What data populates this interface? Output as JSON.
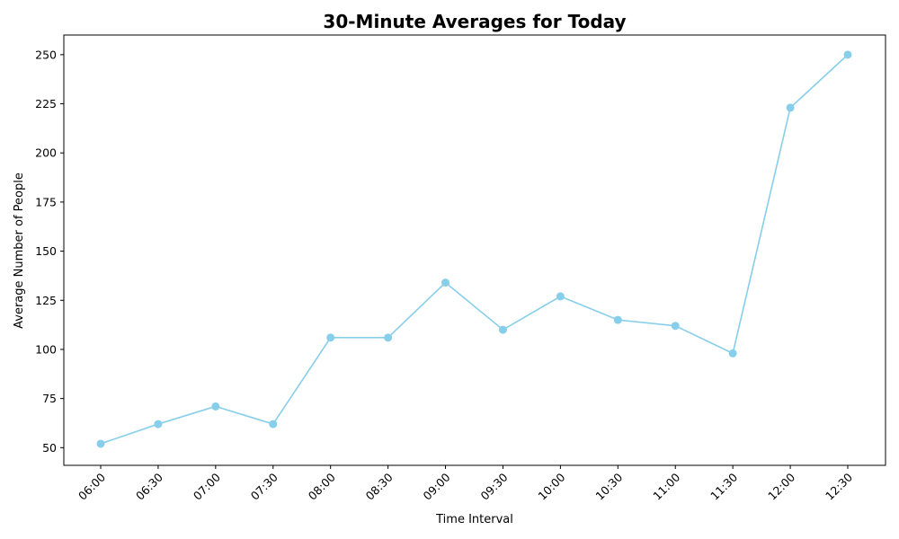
{
  "chart_data": {
    "type": "line",
    "title": "30-Minute Averages for Today",
    "xlabel": "Time Interval",
    "ylabel": "Average Number of People",
    "categories": [
      "06:00",
      "06:30",
      "07:00",
      "07:30",
      "08:00",
      "08:30",
      "09:00",
      "09:30",
      "10:00",
      "10:30",
      "11:00",
      "11:30",
      "12:00",
      "12:30"
    ],
    "series": [
      {
        "values": [
          52,
          62,
          71,
          62,
          106,
          106,
          134,
          110,
          127,
          115,
          112,
          98,
          223,
          250
        ],
        "color": "#87ceeb",
        "marker": "circle"
      }
    ],
    "yticks": [
      50,
      75,
      100,
      125,
      150,
      175,
      200,
      225,
      250
    ],
    "ylim": [
      41,
      260
    ],
    "grid": false,
    "legend": "none"
  }
}
